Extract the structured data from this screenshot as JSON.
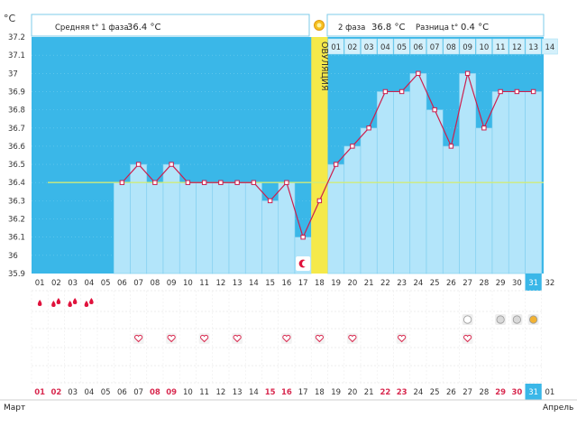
{
  "unit_label": "°C",
  "header": {
    "phase1_label": "Средняя t° 1 фаза",
    "phase1_value": "36.4 °C",
    "phase2_label": "2 фаза",
    "phase2_value": "36.8 °C",
    "diff_label": "Разница t°",
    "diff_value": "0.4 °C"
  },
  "ovulation_label": "ОВУЛЯЦИЯ",
  "cycle_days": [
    "01",
    "02",
    "03",
    "04",
    "05",
    "06",
    "07",
    "08",
    "09",
    "10",
    "11",
    "12",
    "13",
    "14"
  ],
  "chart_data": {
    "type": "bar",
    "title": "",
    "xlabel": "",
    "ylabel": "°C",
    "ylim": [
      35.9,
      37.2
    ],
    "yticks": [
      "37.2",
      "37.1",
      "37",
      "36.9",
      "36.8",
      "36.7",
      "36.6",
      "36.5",
      "36.4",
      "36.3",
      "36.2",
      "36.1",
      "36",
      "35.9"
    ],
    "categories": [
      "01",
      "02",
      "03",
      "04",
      "05",
      "06",
      "07",
      "08",
      "09",
      "10",
      "11",
      "12",
      "13",
      "14",
      "15",
      "16",
      "17",
      "18",
      "19",
      "20",
      "21",
      "22",
      "23",
      "24",
      "25",
      "26",
      "27",
      "28",
      "29",
      "30",
      "31",
      "32"
    ],
    "series": [
      {
        "values": [
          null,
          null,
          null,
          null,
          null,
          36.4,
          36.5,
          36.4,
          36.5,
          36.4,
          36.4,
          36.4,
          36.4,
          36.4,
          36.3,
          36.4,
          36.1,
          36.3,
          36.5,
          36.6,
          36.7,
          36.9,
          36.9,
          37.0,
          36.8,
          36.6,
          37.0,
          36.7,
          36.9,
          36.9,
          36.9,
          null
        ]
      }
    ],
    "coverline": 36.4,
    "ovulation_day": "18",
    "highlighted_day": "31",
    "colors": {
      "bar": "#b3e5fa",
      "bar_edge": "#7dcdee",
      "line": "#cc1f4e",
      "background": "#3ab7e8",
      "coverline": "#cfeb7a",
      "ovulation": "#f5e94a"
    }
  },
  "marks": {
    "drop_days": [
      "01",
      "02",
      "03",
      "04"
    ],
    "drop_counts": [
      1,
      2,
      2,
      2
    ],
    "circle_days": [
      "27",
      "29",
      "30",
      "31"
    ],
    "heart_days": [
      "07",
      "09",
      "11",
      "13",
      "16",
      "18",
      "20",
      "23",
      "27"
    ],
    "moon_day": "17"
  },
  "bottom_dates": {
    "labels": [
      "01",
      "02",
      "03",
      "04",
      "05",
      "06",
      "07",
      "08",
      "09",
      "10",
      "11",
      "12",
      "13",
      "14",
      "15",
      "16",
      "17",
      "18",
      "19",
      "20",
      "21",
      "22",
      "23",
      "24",
      "25",
      "26",
      "27",
      "28",
      "29",
      "30",
      "31",
      "01"
    ],
    "red_indices": [
      0,
      1,
      7,
      8,
      14,
      15,
      21,
      22,
      28,
      29
    ]
  },
  "months": {
    "start": "Март",
    "end": "Апрель"
  }
}
